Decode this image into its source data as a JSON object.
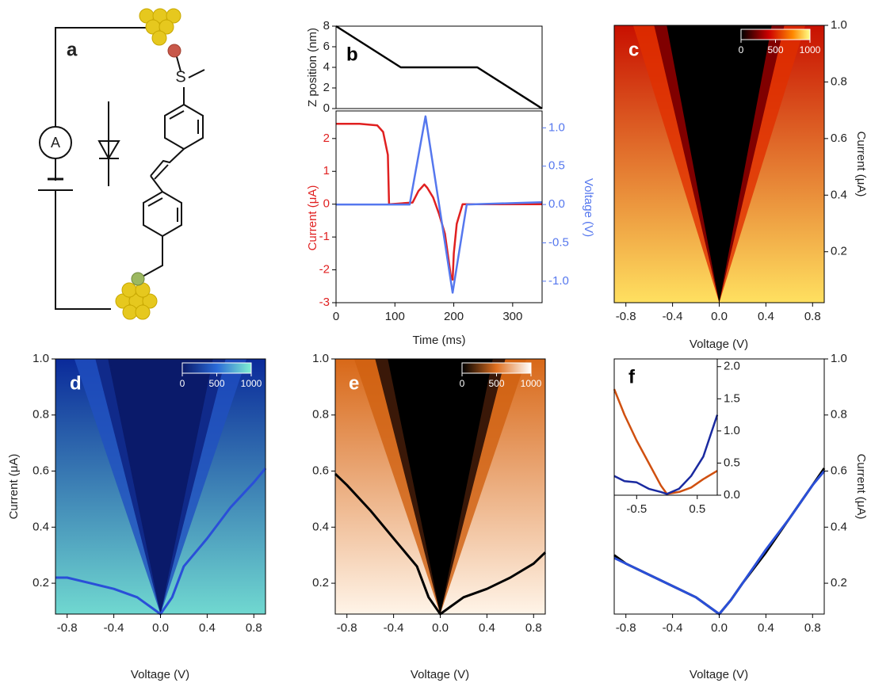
{
  "diagram": {
    "panel_label": "a",
    "ammeter": "A",
    "sulfur": "S"
  },
  "chart_data": [
    {
      "type": "line",
      "panel_label": "b",
      "ylabel": "Z position (nm)",
      "xlim": [
        0,
        350
      ],
      "ylim": [
        0,
        8
      ],
      "yticks": [
        0,
        2,
        4,
        6,
        8
      ],
      "series": [
        {
          "color": "#000000",
          "x": [
            0,
            110,
            240,
            350
          ],
          "values": [
            8,
            4,
            4,
            0
          ]
        }
      ]
    },
    {
      "type": "line",
      "xlabel": "Time (ms)",
      "ylabel": "Current (μA)",
      "y2label": "Voltage (V)",
      "xlim": [
        0,
        350
      ],
      "xticks": [
        0,
        100,
        200,
        300
      ],
      "ylim": [
        -3,
        2.84
      ],
      "yticks": [
        -3,
        -2,
        -1,
        0,
        1,
        2
      ],
      "y2lim": [
        -1.28,
        1.22
      ],
      "y2ticks": [
        {
          "value": -1,
          "label": "-1.0"
        },
        -0.5,
        {
          "value": 0,
          "label": "0.0"
        },
        0.5,
        {
          "value": 1,
          "label": "1.0"
        }
      ],
      "series": [
        {
          "color": "#e02020",
          "x": [
            0,
            10,
            40,
            70,
            80,
            88,
            90,
            92,
            130,
            140,
            150,
            155,
            165,
            175,
            185,
            195,
            198,
            200,
            205,
            215,
            350
          ],
          "values": [
            2.45,
            2.45,
            2.45,
            2.4,
            2.2,
            1.5,
            0,
            0,
            0.05,
            0.4,
            0.6,
            0.5,
            0.2,
            -0.3,
            -0.9,
            -2.2,
            -2.3,
            -1.5,
            -0.6,
            0,
            0
          ]
        },
        {
          "color": "#5577ee",
          "axis": "y2",
          "x": [
            0,
            125,
            152,
            198,
            222,
            350
          ],
          "values": [
            0,
            0,
            1.15,
            -1.15,
            0,
            0.03
          ]
        }
      ]
    },
    {
      "type": "heatmap",
      "panel_label": "c",
      "colormap": "hot",
      "xlabel": "Voltage (V)",
      "ylabel": "Current (μA)",
      "xlim": [
        -0.9,
        0.9
      ],
      "xticks": [
        -0.8,
        -0.4,
        {
          "value": 0,
          "label": "0.0"
        },
        0.4,
        0.8
      ],
      "ylim": [
        0.02,
        1.0
      ],
      "yticks": [
        0.2,
        0.4,
        0.6,
        0.8,
        {
          "value": 1,
          "label": "1.0"
        }
      ],
      "colorbar_ticks": [
        0,
        500,
        1000
      ]
    },
    {
      "type": "heatmap",
      "panel_label": "d",
      "colormap": "blues",
      "xlabel": "Voltage (V)",
      "ylabel": "Current (μA)",
      "xlim": [
        -0.9,
        0.9
      ],
      "xticks": [
        -0.8,
        -0.4,
        {
          "value": 0,
          "label": "0.0"
        },
        0.4,
        0.8
      ],
      "ylim": [
        0.09,
        1.0
      ],
      "yticks": [
        0.2,
        0.4,
        0.6,
        0.8,
        {
          "value": 1,
          "label": "1.0"
        }
      ],
      "colorbar_ticks": [
        0,
        500,
        1000
      ],
      "series": [
        {
          "color": "#2a4fd8",
          "x": [
            -0.9,
            -0.8,
            -0.6,
            -0.4,
            -0.2,
            -0.1,
            0,
            0.1,
            0.2,
            0.4,
            0.6,
            0.8,
            0.9
          ],
          "values": [
            0.22,
            0.22,
            0.2,
            0.18,
            0.15,
            0.12,
            0.09,
            0.15,
            0.26,
            0.36,
            0.47,
            0.56,
            0.61
          ]
        }
      ]
    },
    {
      "type": "heatmap",
      "panel_label": "e",
      "colormap": "oranges",
      "xlabel": "Voltage (V)",
      "xlim": [
        -0.9,
        0.9
      ],
      "xticks": [
        -0.8,
        -0.4,
        {
          "value": 0,
          "label": "0.0"
        },
        0.4,
        0.8
      ],
      "ylim": [
        0.09,
        1.0
      ],
      "yticks": [
        0.2,
        0.4,
        0.6,
        0.8,
        {
          "value": 1,
          "label": "1.0"
        }
      ],
      "colorbar_ticks": [
        0,
        500,
        1000
      ],
      "series": [
        {
          "color": "#000000",
          "x": [
            -0.9,
            -0.8,
            -0.6,
            -0.4,
            -0.2,
            -0.1,
            0,
            0.1,
            0.2,
            0.4,
            0.6,
            0.8,
            0.9
          ],
          "values": [
            0.59,
            0.55,
            0.46,
            0.36,
            0.26,
            0.15,
            0.09,
            0.12,
            0.15,
            0.18,
            0.22,
            0.27,
            0.31
          ]
        }
      ]
    },
    {
      "type": "line",
      "panel_label": "f",
      "xlabel": "Voltage (V)",
      "ylabel": "Current (μA)",
      "xlim": [
        -0.9,
        0.9
      ],
      "xticks": [
        -0.8,
        -0.4,
        {
          "value": 0,
          "label": "0.0"
        },
        0.4,
        0.8
      ],
      "ylim": [
        0.09,
        1.0
      ],
      "yticks": [
        0.2,
        0.4,
        0.6,
        0.8,
        {
          "value": 1,
          "label": "1.0"
        }
      ],
      "series": [
        {
          "color": "#000000",
          "x": [
            -0.9,
            -0.8,
            -0.6,
            -0.4,
            -0.2,
            -0.1,
            0,
            0.1,
            0.2,
            0.4,
            0.6,
            0.8,
            0.9
          ],
          "values": [
            0.3,
            0.27,
            0.23,
            0.19,
            0.15,
            0.12,
            0.09,
            0.14,
            0.2,
            0.31,
            0.43,
            0.55,
            0.61
          ]
        },
        {
          "color": "#2a4fd8",
          "x": [
            -0.9,
            -0.8,
            -0.6,
            -0.4,
            -0.2,
            -0.1,
            0,
            0.1,
            0.2,
            0.4,
            0.6,
            0.8,
            0.9
          ],
          "values": [
            0.29,
            0.27,
            0.23,
            0.19,
            0.15,
            0.12,
            0.09,
            0.14,
            0.2,
            0.32,
            0.43,
            0.55,
            0.6
          ]
        }
      ]
    },
    {
      "type": "line",
      "inset": true,
      "xlim": [
        -0.87,
        0.83
      ],
      "xticks": [
        -0.5,
        0.5
      ],
      "ylim": [
        0,
        2.12
      ],
      "yticks": [
        {
          "value": 0,
          "label": "0.0"
        },
        0.5,
        {
          "value": 1,
          "label": "1.0"
        },
        1.5,
        {
          "value": 2,
          "label": "2.0"
        }
      ],
      "series": [
        {
          "color": "#d05010",
          "x": [
            -0.87,
            -0.7,
            -0.5,
            -0.3,
            -0.1,
            0,
            0.2,
            0.4,
            0.6,
            0.83
          ],
          "values": [
            1.65,
            1.25,
            0.85,
            0.5,
            0.15,
            0.02,
            0.05,
            0.12,
            0.25,
            0.38
          ]
        },
        {
          "color": "#1a2aa0",
          "x": [
            -0.87,
            -0.7,
            -0.5,
            -0.3,
            -0.1,
            0,
            0.2,
            0.4,
            0.6,
            0.83
          ],
          "values": [
            0.3,
            0.22,
            0.2,
            0.1,
            0.05,
            0.02,
            0.1,
            0.3,
            0.6,
            1.25
          ]
        }
      ]
    }
  ]
}
